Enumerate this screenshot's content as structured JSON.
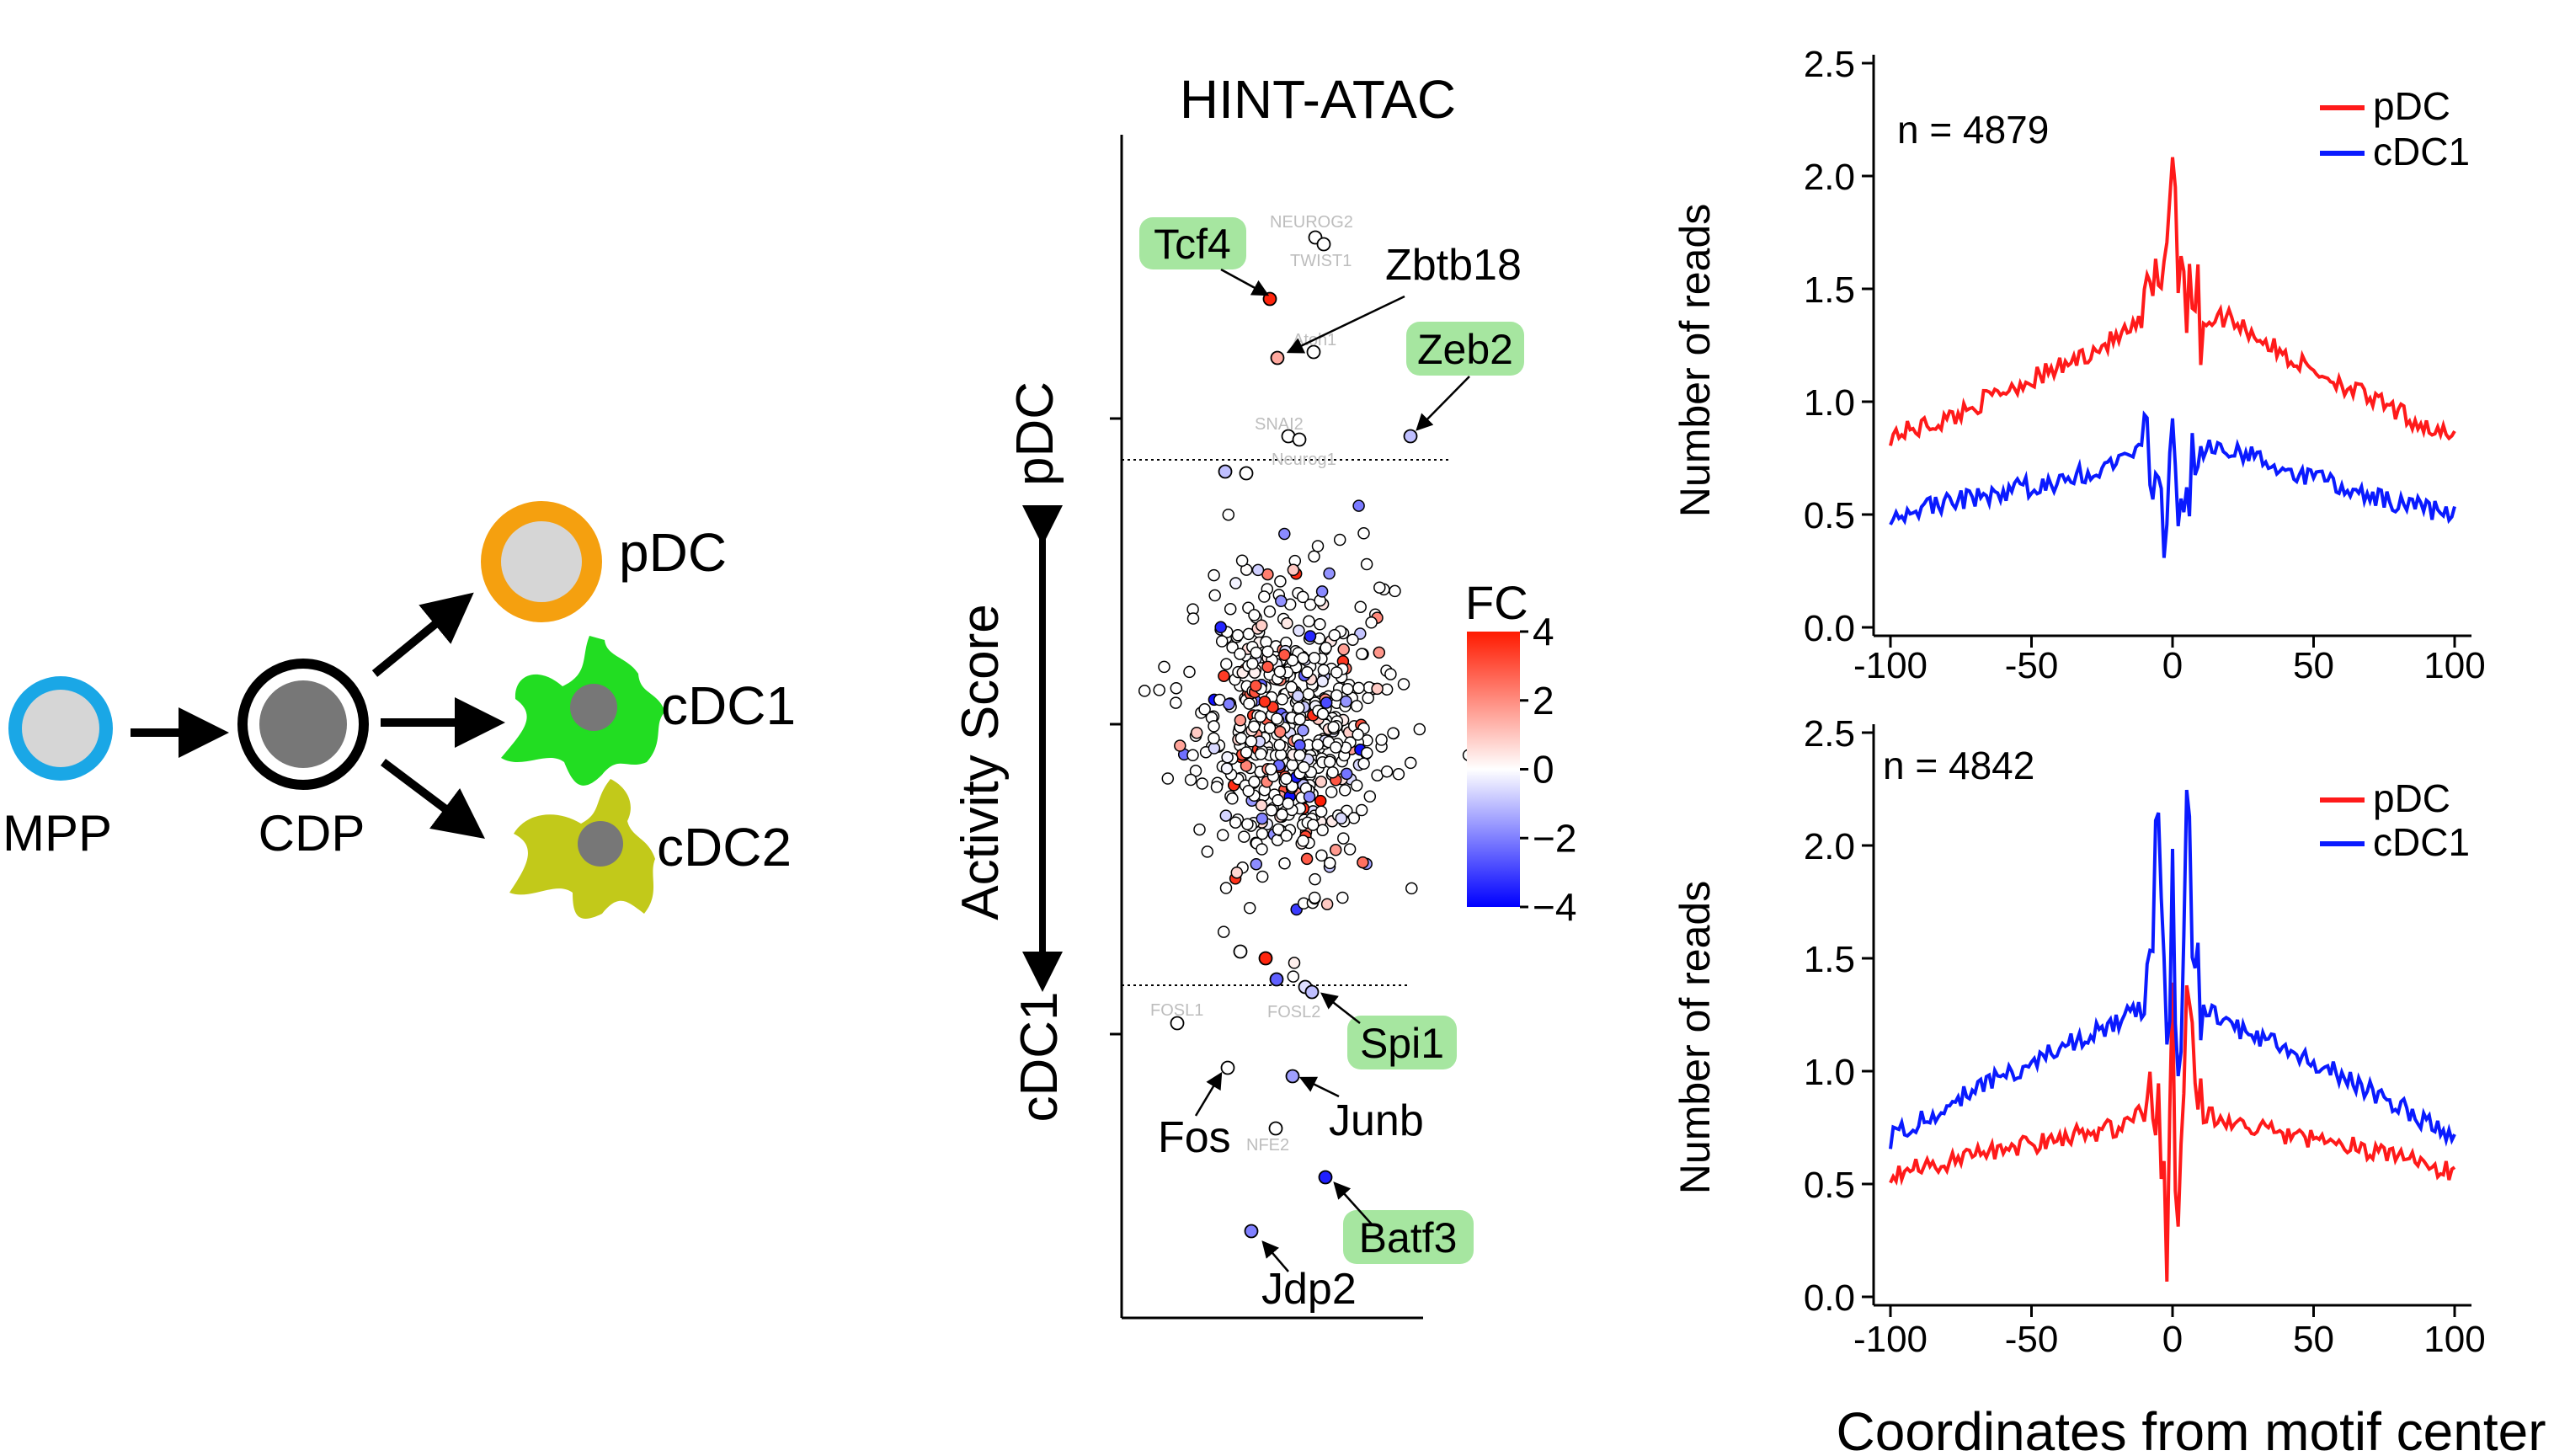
{
  "lineage": {
    "nodes": {
      "mpp": "MPP",
      "cdp": "CDP",
      "pdc": "pDC",
      "cdc1": "cDC1",
      "cdc2": "cDC2"
    },
    "colors": {
      "mpp_ring": "#1aa7e6",
      "pdc_ring": "#f5a00f",
      "cdc1_cell": "#22dd22",
      "cdc2_cell": "#c2c91a",
      "nucleus": "#777777",
      "nucleus_light": "#d6d6d6"
    }
  },
  "scatter": {
    "title": "HINT-ATAC",
    "y_axis_label": "Activity Score",
    "y_top_label": "pDC",
    "y_bottom_label": "cDC1",
    "colorbar": {
      "title": "FC",
      "ticks": [
        "4",
        "2",
        "0",
        "−2",
        "−4"
      ],
      "colors": [
        "#ff1a00",
        "#ffffff",
        "#0000ff"
      ]
    },
    "highlight_labels": {
      "tcf4": "Tcf4",
      "zeb2": "Zeb2",
      "spi1": "Spi1",
      "batf3": "Batf3"
    },
    "plain_labels": {
      "zbtb18": "Zbtb18",
      "fos": "Fos",
      "junb": "Junb",
      "jdp2": "Jdp2"
    },
    "faint_labels": {
      "neurog2": "NEUROG2",
      "twist1": "TWIST1",
      "atoh1": "Atoh1",
      "snai2": "SNAI2",
      "neurog1": "Neurog1",
      "fosl1": "FOSL1",
      "fosl2": "FOSL2",
      "nfe2": "NFE2"
    }
  },
  "profiles": {
    "y_label": "Number of reads",
    "x_label": "Coordinates from motif center",
    "legend": {
      "pdc": "pDC",
      "cdc1": "cDC1"
    },
    "series_colors": {
      "pDC": "#ff1a1a",
      "cDC1": "#0a1aff"
    },
    "top_n": "n = 4879",
    "bottom_n": "n = 4842",
    "x_ticks": [
      "-100",
      "-50",
      "0",
      "50",
      "100"
    ],
    "y_ticks": [
      "0.0",
      "0.5",
      "1.0",
      "1.5",
      "2.0",
      "2.5"
    ]
  },
  "chart_data": [
    {
      "type": "line",
      "title": "",
      "xlabel": "Coordinates from motif center",
      "ylabel": "Number of reads",
      "xlim": [
        -100,
        100
      ],
      "ylim": [
        0,
        2.5
      ],
      "annotation": "n = 4879",
      "x": [
        -100,
        -80,
        -60,
        -40,
        -20,
        -10,
        -5,
        -2,
        0,
        2,
        5,
        10,
        20,
        40,
        60,
        80,
        100
      ],
      "series": [
        {
          "name": "pDC",
          "values": [
            0.85,
            0.92,
            1.05,
            1.15,
            1.28,
            1.35,
            1.5,
            1.8,
            2.05,
            1.7,
            1.55,
            1.35,
            1.38,
            1.2,
            1.08,
            0.95,
            0.83
          ]
        },
        {
          "name": "cDC1",
          "values": [
            0.5,
            0.55,
            0.6,
            0.65,
            0.72,
            0.78,
            0.65,
            0.3,
            0.9,
            0.3,
            0.65,
            0.78,
            0.8,
            0.7,
            0.62,
            0.55,
            0.5
          ]
        }
      ]
    },
    {
      "type": "line",
      "title": "",
      "xlabel": "Coordinates from motif center",
      "ylabel": "Number of reads",
      "xlim": [
        -100,
        100
      ],
      "ylim": [
        0,
        2.5
      ],
      "annotation": "n = 4842",
      "x": [
        -100,
        -80,
        -60,
        -40,
        -20,
        -10,
        -5,
        -2,
        0,
        2,
        5,
        10,
        20,
        40,
        60,
        80,
        100
      ],
      "series": [
        {
          "name": "pDC",
          "values": [
            0.55,
            0.6,
            0.65,
            0.7,
            0.75,
            0.82,
            0.9,
            0.1,
            1.3,
            0.1,
            1.4,
            0.82,
            0.78,
            0.72,
            0.68,
            0.62,
            0.55
          ]
        },
        {
          "name": "cDC1",
          "values": [
            0.7,
            0.85,
            0.98,
            1.1,
            1.22,
            1.28,
            2.1,
            0.9,
            1.9,
            0.9,
            2.05,
            1.28,
            1.2,
            1.1,
            0.98,
            0.85,
            0.7
          ]
        }
      ]
    }
  ]
}
